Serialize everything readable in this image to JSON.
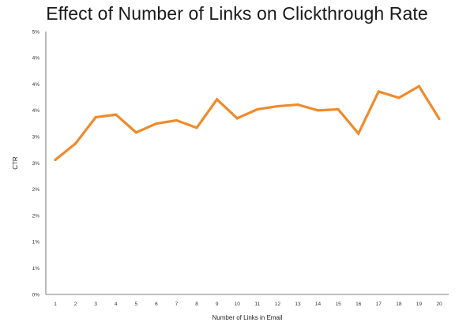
{
  "chart_data": {
    "type": "line",
    "title": "Effect of Number of Links on Clickthrough Rate",
    "xlabel": "Number of Links in Email",
    "ylabel": "CTR",
    "x": [
      1,
      2,
      3,
      4,
      5,
      6,
      7,
      8,
      9,
      10,
      11,
      12,
      13,
      14,
      15,
      16,
      17,
      18,
      19,
      20
    ],
    "categories": [
      "1",
      "2",
      "3",
      "4",
      "5",
      "6",
      "7",
      "8",
      "9",
      "10",
      "11",
      "12",
      "13",
      "14",
      "15",
      "16",
      "17",
      "18",
      "19",
      "20"
    ],
    "series": [
      {
        "values": [
          2.56,
          2.87,
          3.37,
          3.42,
          3.08,
          3.25,
          3.31,
          3.17,
          3.71,
          3.35,
          3.52,
          3.58,
          3.61,
          3.5,
          3.52,
          3.06,
          3.86,
          3.74,
          3.96,
          3.34
        ]
      }
    ],
    "ylim": [
      0,
      5
    ],
    "yticks": [
      0,
      0.5,
      1,
      1.5,
      2,
      2.5,
      3,
      3.5,
      4,
      4.5,
      5
    ],
    "ytick_labels": [
      "0%",
      "1%",
      "1%",
      "2%",
      "2%",
      "3%",
      "3%",
      "4%",
      "4%",
      "4%",
      "5%"
    ],
    "line_color": "#f08a2c",
    "axis_color": "#555555",
    "grid": false,
    "legend": "none"
  }
}
